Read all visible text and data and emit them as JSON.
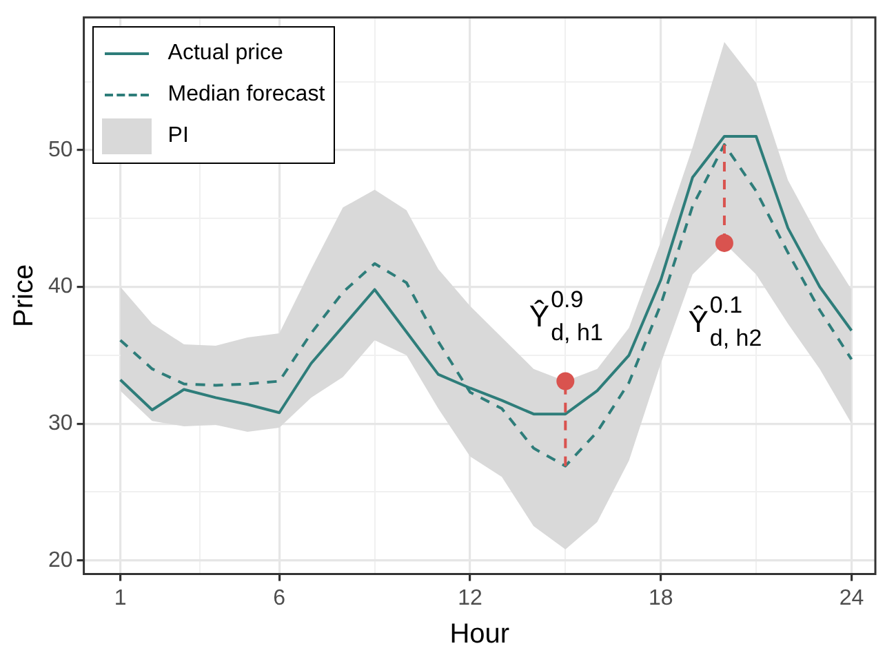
{
  "chart_data": {
    "type": "line",
    "xlabel": "Hour",
    "ylabel": "Price",
    "x": [
      1,
      2,
      3,
      4,
      5,
      6,
      7,
      8,
      9,
      10,
      11,
      12,
      13,
      14,
      15,
      16,
      17,
      18,
      19,
      20,
      21,
      22,
      23,
      24
    ],
    "xlim": [
      -0.15,
      24.75
    ],
    "xticks": [
      1,
      {
        "value": 3.5,
        "label": null
      },
      6,
      {
        "value": 9,
        "label": null
      },
      12,
      {
        "value": 15,
        "label": null
      },
      18,
      {
        "value": 21,
        "label": null
      },
      24
    ],
    "ylim": [
      19.0,
      59.7
    ],
    "yticks": [
      20,
      {
        "value": 25,
        "label": null
      },
      30,
      {
        "value": 35,
        "label": null
      },
      40,
      {
        "value": 45,
        "label": null
      },
      50,
      {
        "value": 55,
        "label": null
      }
    ],
    "grid": true,
    "legend": "top left",
    "series": [
      {
        "name": "PI",
        "type": "area",
        "color": "#d9d9d9",
        "values": [
          null,
          null,
          null,
          null,
          null,
          null,
          null,
          null,
          null,
          null,
          null,
          null,
          null,
          null,
          null,
          null,
          null,
          null,
          null,
          null,
          null,
          null,
          null,
          null
        ]
      },
      {
        "name": "Actual price",
        "color": "#2e7d7a",
        "line_style": "solid",
        "values": [
          33.2,
          31.0,
          32.5,
          31.9,
          31.4,
          30.8,
          34.4,
          37.1,
          39.8,
          36.7,
          33.6,
          32.6,
          31.7,
          30.7,
          30.7,
          32.4,
          35.0,
          40.5,
          48.0,
          51.0,
          51.0,
          44.3,
          40.0,
          36.8
        ]
      },
      {
        "name": "Median forecast",
        "type": "line",
        "color": "#2e7d7a",
        "line_style": "dashed",
        "values": [
          36.1,
          34.0,
          32.9,
          32.8,
          32.9,
          33.1,
          36.6,
          39.6,
          41.7,
          40.3,
          36.0,
          32.3,
          31.1,
          28.2,
          26.9,
          29.4,
          33.0,
          38.7,
          45.9,
          50.4,
          47.0,
          42.5,
          38.3,
          34.7
        ],
        "lower": [
          32.4,
          30.2,
          29.8,
          29.9,
          29.4,
          29.7,
          31.9,
          33.4,
          36.1,
          35.0,
          31.1,
          27.6,
          26.1,
          22.5,
          20.8,
          22.8,
          27.3,
          34.4,
          40.9,
          43.2,
          40.9,
          37.3,
          34.0,
          30.0
        ],
        "upper": [
          40.0,
          37.3,
          35.8,
          35.7,
          36.3,
          36.6,
          41.3,
          45.8,
          47.1,
          45.6,
          41.3,
          38.6,
          36.3,
          34.0,
          33.1,
          34.0,
          37.0,
          43.3,
          50.2,
          57.9,
          54.9,
          47.8,
          43.5,
          39.8
        ]
      },
      {
        "type": "scatter",
        "color": "#d9534f",
        "marker": "circle",
        "line_style": "dashed",
        "values": [
          null,
          null,
          null,
          null,
          null,
          null,
          null,
          null,
          null,
          null,
          null,
          null,
          null,
          null,
          33.1,
          null,
          null,
          null,
          null,
          43.2,
          null,
          null,
          null,
          null
        ],
        "errors": [
          null,
          null,
          null,
          null,
          null,
          null,
          null,
          null,
          null,
          null,
          null,
          null,
          null,
          null,
          [
            26.9,
            33.1
          ],
          null,
          null,
          null,
          null,
          [
            43.2,
            50.4
          ],
          null,
          null,
          null,
          null
        ]
      }
    ],
    "annotations": [
      "Ŷ$^{0.9}$$_{d, h1}$",
      "Ŷ$^{0.1}$$_{d, h2}$"
    ]
  }
}
